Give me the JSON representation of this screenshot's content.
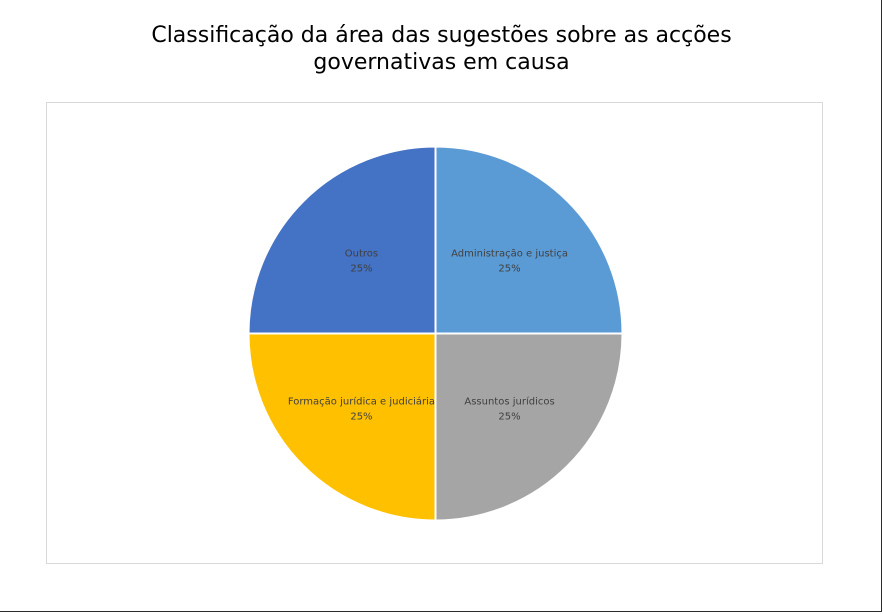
{
  "chart_data": {
    "type": "pie",
    "title_lines": [
      "Classificação da área das sugestões sobre as acções",
      "governativas em causa"
    ],
    "slices": [
      {
        "label": "Administração e justiça",
        "value": 25,
        "value_label": "25%",
        "color": "#5b9bd5"
      },
      {
        "label": "Assuntos jurídicos",
        "value": 25,
        "value_label": "25%",
        "color": "#a5a5a5"
      },
      {
        "label": "Formação jurídica e judiciária",
        "value": 25,
        "value_label": "25%",
        "color": "#ffc000"
      },
      {
        "label": "Outros",
        "value": 25,
        "value_label": "25%",
        "color": "#4472c4"
      }
    ],
    "start_angle_deg": 0,
    "direction": "clockwise",
    "legend": "none",
    "slice_border_color": "#ffffff"
  }
}
